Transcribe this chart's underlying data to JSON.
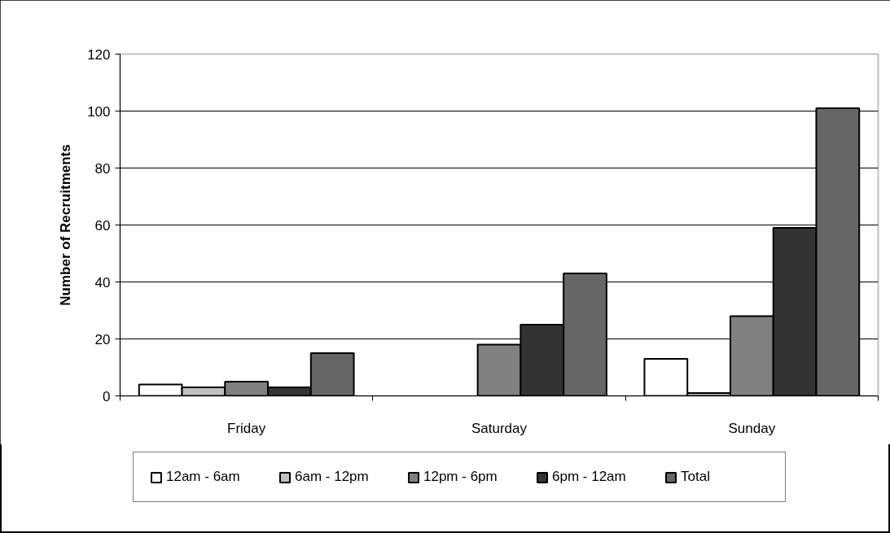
{
  "chart_data": {
    "type": "bar",
    "ylabel": "Number of Recruitments",
    "categories": [
      "Friday",
      "Saturday",
      "Sunday"
    ],
    "series": [
      {
        "name": "12am - 6am",
        "color": "#ffffff",
        "values": [
          4,
          null,
          13
        ]
      },
      {
        "name": "6am - 12pm",
        "color": "#c0c0c0",
        "values": [
          3,
          null,
          1
        ]
      },
      {
        "name": "12pm - 6pm",
        "color": "#808080",
        "values": [
          5,
          18,
          28
        ]
      },
      {
        "name": "6pm - 12am",
        "color": "#333333",
        "values": [
          3,
          25,
          59
        ]
      },
      {
        "name": "Total",
        "color": "#666666",
        "values": [
          15,
          43,
          101
        ]
      }
    ],
    "ylim": [
      0,
      120
    ],
    "yticks": [
      0,
      20,
      40,
      60,
      80,
      100,
      120
    ],
    "grid": "y",
    "legend": "bottom"
  }
}
